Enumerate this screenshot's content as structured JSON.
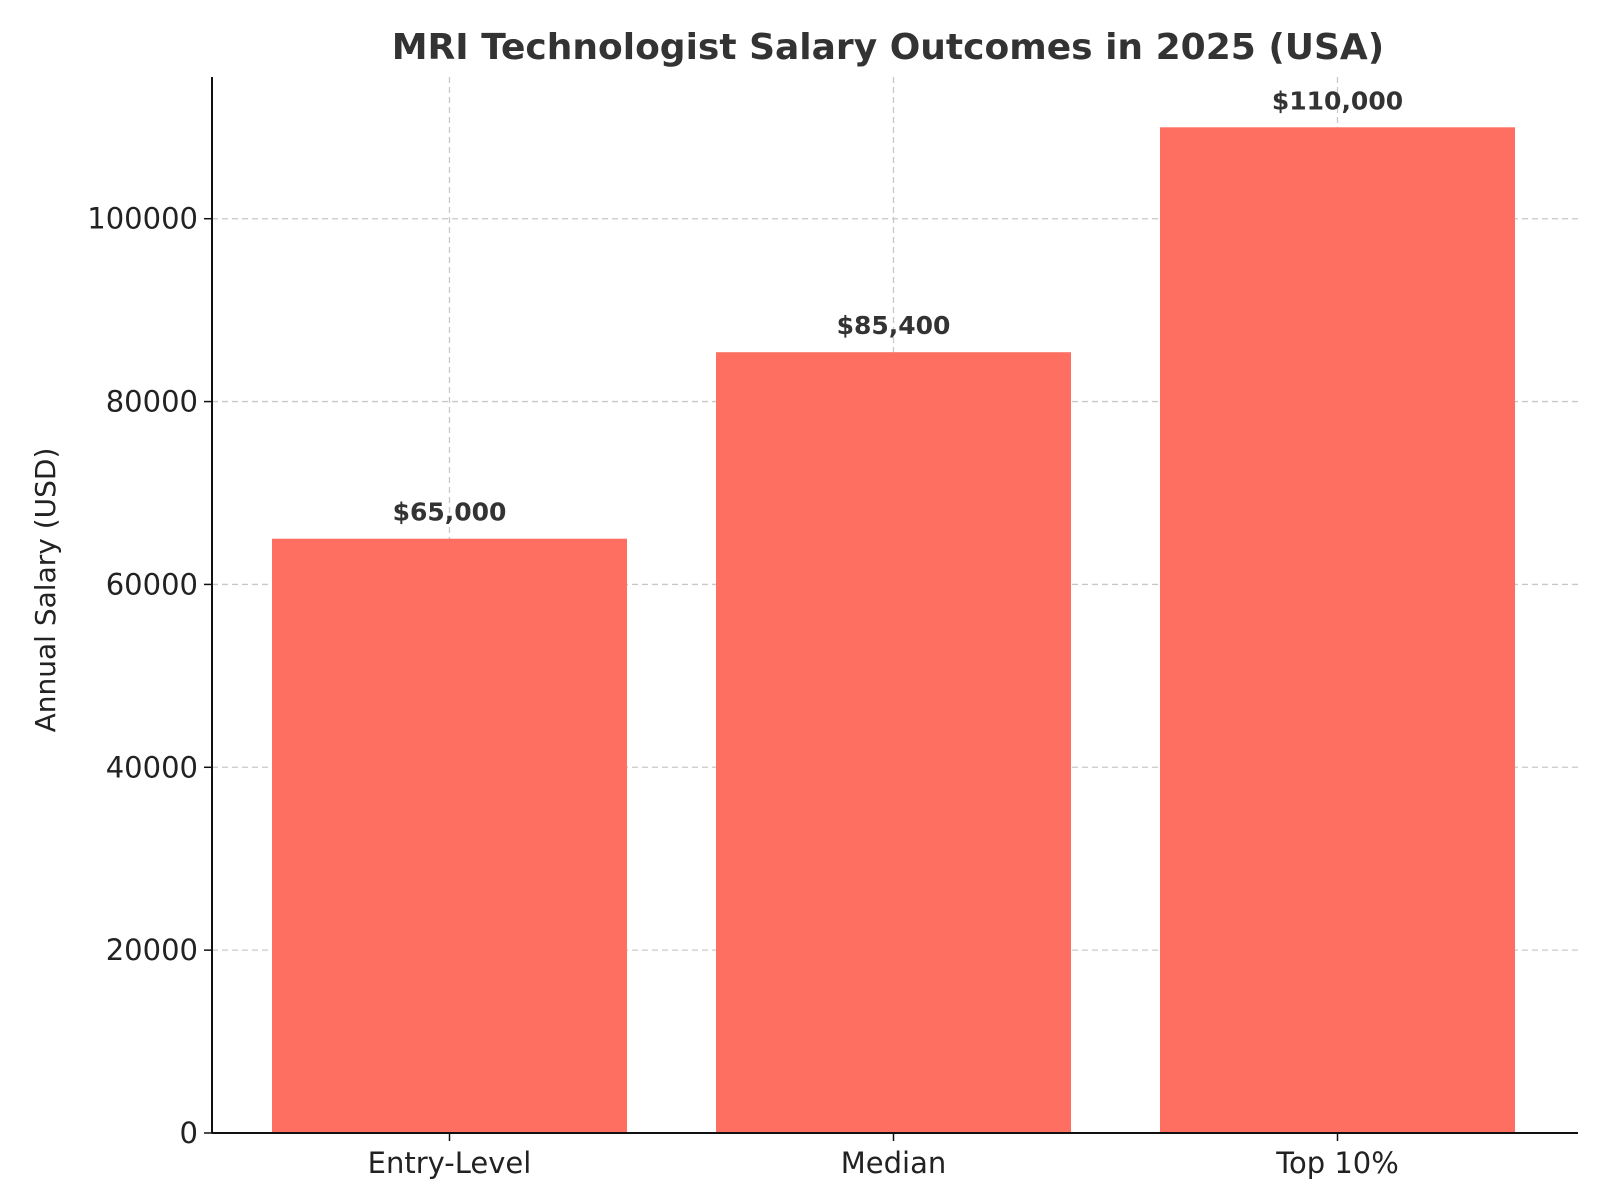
{
  "chart_data": {
    "type": "bar",
    "title": "MRI Technologist Salary Outcomes in 2025 (USA)",
    "xlabel": "",
    "ylabel": "Annual Salary (USD)",
    "categories": [
      "Entry-Level",
      "Median",
      "Top 10%"
    ],
    "values": [
      65000,
      85400,
      110000
    ],
    "data_labels": [
      "$65,000",
      "$85,400",
      "$110,000"
    ],
    "ylim": [
      0,
      115500
    ],
    "yticks": [
      0,
      20000,
      40000,
      60000,
      80000,
      100000
    ],
    "ytick_labels": [
      "0",
      "20000",
      "40000",
      "60000",
      "80000",
      "100000"
    ],
    "grid": true,
    "bar_color": "#ff6f61"
  }
}
